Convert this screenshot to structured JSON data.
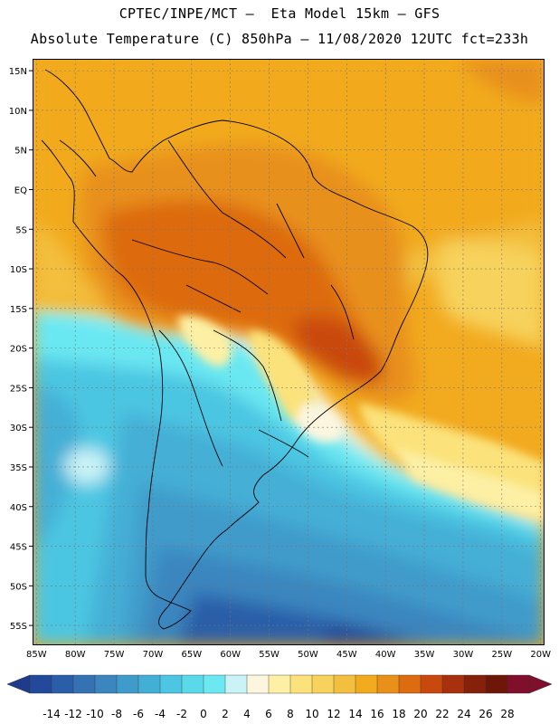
{
  "header": {
    "line1": "CPTEC/INPE/MCT –  Eta Model 15km – GFS",
    "line2": "Absolute Temperature (C) 850hPa – 11/08/2020 12UTC fct=233h"
  },
  "map": {
    "lat_labels": [
      "15N",
      "10N",
      "5N",
      "EQ",
      "5S",
      "10S",
      "15S",
      "20S",
      "25S",
      "30S",
      "35S",
      "40S",
      "45S",
      "50S",
      "55S"
    ],
    "lon_labels": [
      "85W",
      "80W",
      "75W",
      "70W",
      "65W",
      "60W",
      "55W",
      "50W",
      "45W",
      "40W",
      "35W",
      "30W",
      "25W",
      "20W"
    ],
    "lat_values": [
      15,
      10,
      5,
      0,
      -5,
      -10,
      -15,
      -20,
      -25,
      -30,
      -35,
      -40,
      -45,
      -50,
      -55
    ],
    "lon_values": [
      -85,
      -80,
      -75,
      -70,
      -65,
      -60,
      -55,
      -50,
      -45,
      -40,
      -35,
      -30,
      -25,
      -20
    ],
    "extent": {
      "lon_min": -85.5,
      "lon_max": -19.5,
      "lat_min": -57.5,
      "lat_max": 16.5
    },
    "grid": true,
    "field": "Absolute Temperature (C) 850hPa"
  },
  "colorbar": {
    "labels": [
      "-14",
      "-12",
      "-10",
      "-8",
      "-6",
      "-4",
      "-2",
      "0",
      "2",
      "4",
      "6",
      "8",
      "10",
      "12",
      "14",
      "16",
      "18",
      "20",
      "22",
      "24",
      "26",
      "28"
    ],
    "colors": [
      "#1f3b8c",
      "#234a9a",
      "#2b5ea8",
      "#3572b4",
      "#3b86bf",
      "#3f9bca",
      "#44afd6",
      "#4cc6e2",
      "#5ad9ea",
      "#6be8f2",
      "#c9f3f7",
      "#fdf6de",
      "#fdf0a4",
      "#fbe27a",
      "#f7d25c",
      "#f3bf3e",
      "#f2aa1f",
      "#e8901a",
      "#dd6b0f",
      "#c9480d",
      "#a8300c",
      "#85200b",
      "#6e1709",
      "#7f0f2a"
    ]
  }
}
